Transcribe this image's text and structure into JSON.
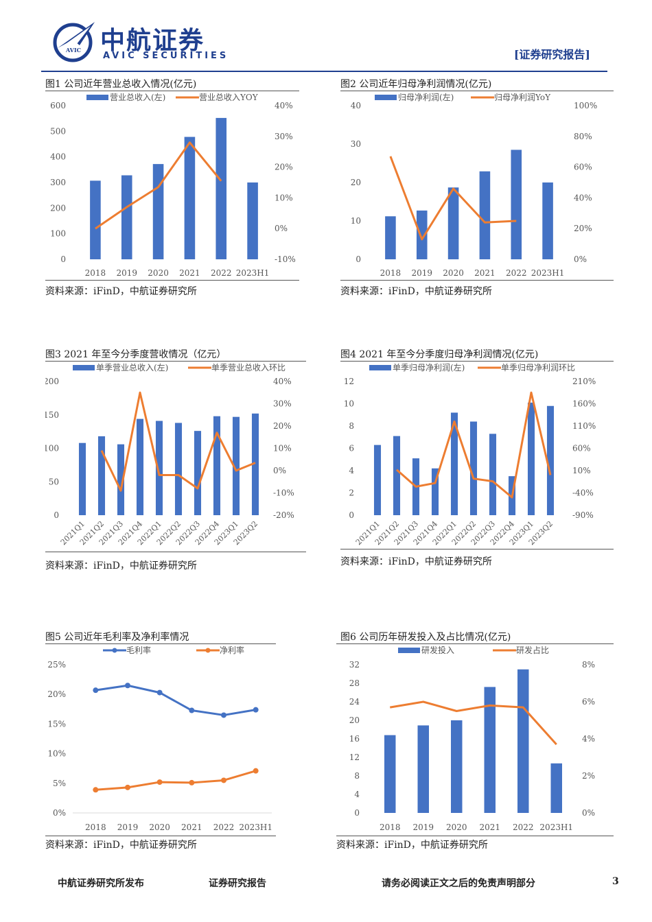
{
  "header": {
    "logo_cn": "中航证券",
    "logo_en": "AVIC SECURITIES",
    "logo_mark": "AVIC",
    "report_tag": "[证券研究报告]"
  },
  "colors": {
    "bar": "#4472c4",
    "line": "#ed7d31",
    "line2": "#4472c4",
    "brand": "#1f3f8f"
  },
  "figures": [
    {
      "id": "fig1",
      "title": "图1  公司近年营业总收入情况(亿元)",
      "source": "资料来源：iFinD，中航证券研究所",
      "chart_data": {
        "type": "bar",
        "categories": [
          "2018",
          "2019",
          "2020",
          "2021",
          "2022",
          "2023H1"
        ],
        "series": [
          {
            "name": "营业总收入(左)",
            "kind": "bar",
            "axis": "left",
            "values": [
              307,
              328,
              372,
              478,
              552,
              300
            ]
          },
          {
            "name": "营业总收入YOY",
            "kind": "line",
            "axis": "right",
            "values": [
              0.0,
              7.0,
              13.5,
              28.0,
              15.5,
              null
            ]
          }
        ],
        "left_axis": {
          "min": 0,
          "max": 600,
          "ticks": [
            "0",
            "100",
            "200",
            "300",
            "400",
            "500",
            "600"
          ]
        },
        "right_axis": {
          "min": -10,
          "max": 40,
          "ticks": [
            "-10%",
            "0%",
            "10%",
            "20%",
            "30%",
            "40%"
          ]
        },
        "legend_position": "top"
      }
    },
    {
      "id": "fig2",
      "title": "图2  公司近年归母净利润情况(亿元)",
      "source": "资料来源：iFinD，中航证券研究所",
      "chart_data": {
        "type": "bar",
        "categories": [
          "2018",
          "2019",
          "2020",
          "2021",
          "2022",
          "2023H1"
        ],
        "series": [
          {
            "name": "归母净利润(左)",
            "kind": "bar",
            "axis": "left",
            "values": [
              11.2,
              12.7,
              18.7,
              22.9,
              28.5,
              20.0
            ]
          },
          {
            "name": "归母净利润YoY",
            "kind": "line",
            "axis": "right",
            "values": [
              67,
              13,
              46,
              24,
              25,
              null
            ]
          }
        ],
        "left_axis": {
          "min": 0,
          "max": 40,
          "ticks": [
            "0",
            "10",
            "20",
            "30",
            "40"
          ]
        },
        "right_axis": {
          "min": 0,
          "max": 100,
          "ticks": [
            "0%",
            "20%",
            "40%",
            "60%",
            "80%",
            "100%"
          ]
        },
        "legend_position": "top"
      }
    },
    {
      "id": "fig3",
      "title": "图3  2021 年至今分季度营收情况（亿元）",
      "source": "资料来源：iFinD，中航证券研究所",
      "chart_data": {
        "type": "bar",
        "categories": [
          "2021Q1",
          "2021Q2",
          "2021Q3",
          "2021Q4",
          "2022Q1",
          "2022Q2",
          "2022Q3",
          "2022Q4",
          "2023Q1",
          "2023Q2"
        ],
        "series": [
          {
            "name": "单季营业总收入(左)",
            "kind": "bar",
            "axis": "left",
            "values": [
              108,
              118,
              106,
              144,
              141,
              138,
              126,
              148,
              147,
              152
            ]
          },
          {
            "name": "单季营业总收入环比",
            "kind": "line",
            "axis": "right",
            "values": [
              null,
              9,
              -9,
              35,
              -2,
              -2,
              -8,
              17,
              0,
              3.5
            ]
          }
        ],
        "left_axis": {
          "min": 0,
          "max": 200,
          "ticks": [
            "0",
            "50",
            "100",
            "150",
            "200"
          ]
        },
        "right_axis": {
          "min": -20,
          "max": 40,
          "ticks": [
            "-20%",
            "-10%",
            "0%",
            "10%",
            "20%",
            "30%",
            "40%"
          ]
        },
        "legend_position": "top",
        "rotated_xlabels": true
      }
    },
    {
      "id": "fig4",
      "title": "图4  2021 年至今分季度归母净利润情况(亿元)",
      "source": "资料来源：iFinD，中航证券研究所",
      "chart_data": {
        "type": "bar",
        "categories": [
          "2021Q1",
          "2021Q2",
          "2021Q3",
          "2021Q4",
          "2022Q1",
          "2022Q2",
          "2022Q3",
          "2022Q4",
          "2023Q1",
          "2023Q2"
        ],
        "series": [
          {
            "name": "单季归母净利润(左)",
            "kind": "bar",
            "axis": "left",
            "values": [
              6.3,
              7.1,
              5.1,
              4.2,
              9.2,
              8.4,
              7.3,
              3.5,
              10.1,
              9.8
            ]
          },
          {
            "name": "单季归母净利润环比",
            "kind": "line",
            "axis": "right",
            "values": [
              null,
              12,
              -26,
              -18,
              120,
              -8,
              -14,
              -50,
              185,
              0
            ]
          }
        ],
        "left_axis": {
          "min": 0,
          "max": 12,
          "ticks": [
            "0",
            "2",
            "4",
            "6",
            "8",
            "10",
            "12"
          ]
        },
        "right_axis": {
          "min": -90,
          "max": 210,
          "ticks": [
            "-90%",
            "-40%",
            "10%",
            "60%",
            "110%",
            "160%",
            "210%"
          ]
        },
        "legend_position": "top",
        "rotated_xlabels": true
      }
    },
    {
      "id": "fig5",
      "title": "图5  公司近年毛利率及净利率情况",
      "source": "资料来源：iFinD，中航证券研究所",
      "chart_data": {
        "type": "line",
        "categories": [
          "2018",
          "2019",
          "2020",
          "2021",
          "2022",
          "2023H1"
        ],
        "series": [
          {
            "name": "毛利率",
            "kind": "line",
            "axis": "left",
            "color": "#4472c4",
            "values": [
              20.7,
              21.5,
              20.3,
              17.3,
              16.5,
              17.4
            ]
          },
          {
            "name": "净利率",
            "kind": "line",
            "axis": "left",
            "color": "#ed7d31",
            "values": [
              3.9,
              4.3,
              5.2,
              5.1,
              5.5,
              7.1
            ]
          }
        ],
        "left_axis": {
          "min": 0,
          "max": 25,
          "ticks": [
            "0%",
            "5%",
            "10%",
            "15%",
            "20%",
            "25%"
          ]
        },
        "markers": true,
        "legend_position": "top"
      }
    },
    {
      "id": "fig6",
      "title": "图6  公司历年研发投入及占比情况(亿元)",
      "source": "资料来源：iFinD，中航证券研究所",
      "chart_data": {
        "type": "bar",
        "categories": [
          "2018",
          "2019",
          "2020",
          "2021",
          "2022",
          "2023H1"
        ],
        "series": [
          {
            "name": "研发投入",
            "kind": "bar",
            "axis": "left",
            "values": [
              16.8,
              18.9,
              20.0,
              27.2,
              31.0,
              10.7
            ]
          },
          {
            "name": "研发占比",
            "kind": "line",
            "axis": "right",
            "values": [
              5.7,
              6.0,
              5.5,
              5.8,
              5.7,
              3.7
            ]
          }
        ],
        "left_axis": {
          "min": 0,
          "max": 32,
          "ticks": [
            "0",
            "4",
            "8",
            "12",
            "16",
            "20",
            "24",
            "28",
            "32"
          ]
        },
        "right_axis": {
          "min": 0,
          "max": 8,
          "ticks": [
            "0%",
            "2%",
            "4%",
            "6%",
            "8%"
          ]
        },
        "legend_position": "top"
      }
    }
  ],
  "footer": {
    "publisher": "中航证券研究所发布",
    "report_type": "证券研究报告",
    "disclaimer": "请务必阅读正文之后的免责声明部分",
    "page_number": "3"
  }
}
